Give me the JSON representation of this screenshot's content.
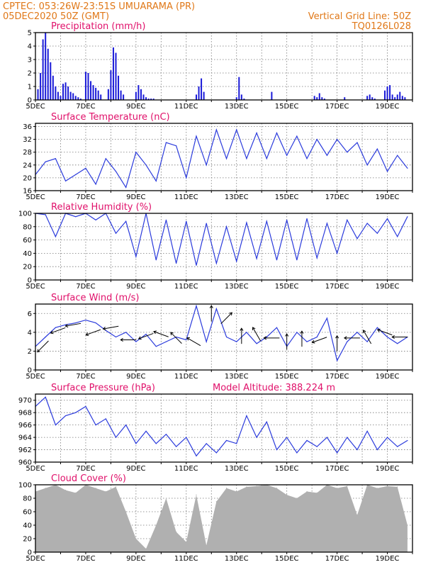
{
  "header": {
    "line1": "CPTEC:   053:26W-23:51S   UMUARAMA (PR)",
    "line2": "05DEC2020 50Z (GMT)",
    "right1": "Vertical Grid Line: 50Z",
    "right2": "TQ0126L028"
  },
  "colors": {
    "line": "#2b3bdc",
    "bars": "#1a1ad8",
    "cloud": "#b0b0b0",
    "header": "#e07818",
    "title": "#e0106a"
  },
  "x_tick_labels": [
    "5DEC",
    "7DEC",
    "9DEC",
    "11DEC",
    "13DEC",
    "15DEC",
    "17DEC",
    "19DEC"
  ],
  "chart_data": [
    {
      "id": "precip",
      "type": "bar",
      "title": "Precipitation (mm/h)",
      "ylim": [
        0,
        5
      ],
      "yticks": [
        0,
        1,
        2,
        3,
        4,
        5
      ],
      "x": [
        0.1,
        0.2,
        0.3,
        0.4,
        0.5,
        0.6,
        0.7,
        0.8,
        0.9,
        1.0,
        1.1,
        1.2,
        1.3,
        1.4,
        1.5,
        1.6,
        1.7,
        1.8,
        2.0,
        2.1,
        2.2,
        2.3,
        2.4,
        2.5,
        2.6,
        2.9,
        3.0,
        3.1,
        3.2,
        3.3,
        3.4,
        3.5,
        4.0,
        4.1,
        4.2,
        4.3,
        4.4,
        4.5,
        4.6,
        4.7,
        6.4,
        6.5,
        6.6,
        6.7,
        8.0,
        8.1,
        8.2,
        8.3,
        9.4,
        11.1,
        11.2,
        11.3,
        11.4,
        11.5,
        12.3,
        13.2,
        13.3,
        13.4,
        13.5,
        13.9,
        14.0,
        14.1,
        14.2,
        14.3,
        14.4,
        14.5,
        14.6,
        14.7
      ],
      "y": [
        0.8,
        2.0,
        4.5,
        5.0,
        3.8,
        2.8,
        1.8,
        1.0,
        0.6,
        0.3,
        1.2,
        1.3,
        1.0,
        0.6,
        0.5,
        0.3,
        0.2,
        0.1,
        2.1,
        2.0,
        1.4,
        1.1,
        0.9,
        0.7,
        0.4,
        0.8,
        2.2,
        3.9,
        3.5,
        1.8,
        0.7,
        0.4,
        0.6,
        1.1,
        0.8,
        0.4,
        0.2,
        0.1,
        0.1,
        0.1,
        0.4,
        1.0,
        1.6,
        0.6,
        0.2,
        1.7,
        0.4,
        0.1,
        0.6,
        0.3,
        0.2,
        0.5,
        0.2,
        0.1,
        0.2,
        0.3,
        0.4,
        0.2,
        0.1,
        0.7,
        1.0,
        1.1,
        0.4,
        0.2,
        0.4,
        0.6,
        0.3,
        0.2
      ]
    },
    {
      "id": "temp",
      "type": "line",
      "title": "Surface Temperature (nC)",
      "ylim": [
        16,
        37
      ],
      "yticks": [
        16,
        20,
        24,
        28,
        32,
        36
      ],
      "x": [
        0,
        0.4,
        0.8,
        1.2,
        1.6,
        2.0,
        2.4,
        2.8,
        3.2,
        3.6,
        4.0,
        4.4,
        4.8,
        5.2,
        5.6,
        6.0,
        6.4,
        6.8,
        7.2,
        7.6,
        8.0,
        8.4,
        8.8,
        9.2,
        9.6,
        10.0,
        10.4,
        10.8,
        11.2,
        11.6,
        12.0,
        12.4,
        12.8,
        13.2,
        13.6,
        14.0,
        14.4,
        14.8
      ],
      "y": [
        21,
        25,
        26,
        19,
        21,
        23,
        18,
        26,
        22,
        17,
        28,
        24,
        19,
        31,
        30,
        20,
        33,
        24,
        35,
        26,
        35,
        26,
        34,
        26,
        34,
        27,
        33,
        26,
        32,
        27,
        32,
        28,
        31,
        24,
        29,
        22,
        27,
        23
      ]
    },
    {
      "id": "rh",
      "type": "line",
      "title": "Relative Humidity (%)",
      "ylim": [
        0,
        100
      ],
      "yticks": [
        0,
        20,
        40,
        60,
        80,
        100
      ],
      "x": [
        0,
        0.4,
        0.8,
        1.2,
        1.6,
        2.0,
        2.4,
        2.8,
        3.2,
        3.6,
        4.0,
        4.4,
        4.8,
        5.2,
        5.6,
        6.0,
        6.4,
        6.8,
        7.2,
        7.6,
        8.0,
        8.4,
        8.8,
        9.2,
        9.6,
        10.0,
        10.4,
        10.8,
        11.2,
        11.6,
        12.0,
        12.4,
        12.8,
        13.2,
        13.6,
        14.0,
        14.4,
        14.8
      ],
      "y": [
        100,
        98,
        65,
        100,
        95,
        100,
        90,
        100,
        70,
        88,
        35,
        100,
        30,
        90,
        25,
        88,
        22,
        85,
        25,
        80,
        28,
        86,
        32,
        88,
        30,
        90,
        30,
        92,
        33,
        85,
        40,
        90,
        62,
        85,
        70,
        92,
        65,
        95
      ]
    },
    {
      "id": "wind",
      "type": "line",
      "title": "Surface Wind (m/s)",
      "ylim": [
        0,
        7
      ],
      "yticks": [
        0,
        2,
        4,
        6
      ],
      "x": [
        0,
        0.4,
        0.8,
        1.2,
        1.6,
        2.0,
        2.4,
        2.8,
        3.2,
        3.6,
        4.0,
        4.4,
        4.8,
        5.2,
        5.6,
        6.0,
        6.4,
        6.8,
        7.2,
        7.6,
        8.0,
        8.4,
        8.8,
        9.2,
        9.6,
        10.0,
        10.4,
        10.8,
        11.2,
        11.6,
        12.0,
        12.4,
        12.8,
        13.2,
        13.6,
        14.0,
        14.4,
        14.8
      ],
      "y": [
        2.5,
        3.5,
        4.5,
        4.8,
        5.0,
        5.3,
        5.0,
        4.2,
        3.5,
        4.0,
        3.0,
        3.8,
        2.5,
        3.0,
        3.5,
        3.2,
        6.8,
        3.0,
        6.5,
        3.5,
        3.0,
        4.0,
        2.8,
        3.5,
        4.5,
        2.5,
        4.0,
        3.0,
        3.5,
        5.5,
        1.0,
        3.0,
        4.0,
        3.0,
        4.5,
        3.5,
        2.8,
        3.5
      ],
      "arrows": {
        "x": [
          0.3,
          0.9,
          1.5,
          2.3,
          3.0,
          3.7,
          4.4,
          5.0,
          5.6,
          6.3,
          7.0,
          7.6,
          8.2,
          8.8,
          9.4,
          10.0,
          10.6,
          11.3,
          12.0,
          12.6,
          13.2,
          13.9,
          14.5
        ],
        "speed": [
          2.5,
          4.2,
          4.8,
          4.0,
          4.5,
          3.2,
          3.6,
          3.8,
          3.4,
          3.0,
          6.0,
          5.5,
          3.6,
          3.8,
          3.4,
          3.0,
          3.3,
          3.2,
          2.8,
          3.4,
          3.5,
          4.0,
          3.5
        ],
        "dir_deg": [
          225,
          200,
          190,
          200,
          190,
          180,
          200,
          160,
          135,
          150,
          90,
          45,
          90,
          120,
          180,
          90,
          90,
          200,
          90,
          180,
          120,
          160,
          180
        ]
      }
    },
    {
      "id": "pressure",
      "type": "line",
      "title": "Surface Pressure (hPa)",
      "subtitle": "Model Altitude: 388.224 m",
      "ylim": [
        960,
        971
      ],
      "yticks": [
        960,
        962,
        964,
        966,
        968,
        970
      ],
      "x": [
        0,
        0.4,
        0.8,
        1.2,
        1.6,
        2.0,
        2.4,
        2.8,
        3.2,
        3.6,
        4.0,
        4.4,
        4.8,
        5.2,
        5.6,
        6.0,
        6.4,
        6.8,
        7.2,
        7.6,
        8.0,
        8.4,
        8.8,
        9.2,
        9.6,
        10.0,
        10.4,
        10.8,
        11.2,
        11.6,
        12.0,
        12.4,
        12.8,
        13.2,
        13.6,
        14.0,
        14.4,
        14.8
      ],
      "y": [
        969,
        970.5,
        966,
        967.5,
        968,
        969,
        966,
        967,
        964,
        966,
        963,
        965,
        963,
        964.5,
        962.5,
        964,
        961,
        963,
        961.5,
        963.5,
        963,
        967.5,
        964,
        966.5,
        962,
        964,
        961.5,
        963.5,
        962.5,
        964,
        961.5,
        964,
        962,
        965,
        962,
        964,
        962.5,
        963.5
      ]
    },
    {
      "id": "cloud",
      "type": "area",
      "title": "Cloud Cover (%)",
      "ylim": [
        0,
        100
      ],
      "yticks": [
        0,
        20,
        40,
        60,
        80,
        100
      ],
      "x": [
        0,
        0.4,
        0.8,
        1.2,
        1.6,
        2.0,
        2.4,
        2.8,
        3.2,
        3.6,
        4.0,
        4.4,
        4.8,
        5.2,
        5.6,
        6.0,
        6.4,
        6.8,
        7.2,
        7.6,
        8.0,
        8.4,
        8.8,
        9.2,
        9.6,
        10.0,
        10.4,
        10.8,
        11.2,
        11.6,
        12.0,
        12.4,
        12.8,
        13.2,
        13.6,
        14.0,
        14.4,
        14.8
      ],
      "y": [
        90,
        95,
        100,
        92,
        88,
        100,
        95,
        90,
        97,
        60,
        20,
        5,
        40,
        80,
        30,
        15,
        85,
        10,
        75,
        95,
        90,
        97,
        98,
        100,
        95,
        85,
        80,
        90,
        88,
        100,
        95,
        98,
        55,
        100,
        95,
        98,
        97,
        40
      ]
    }
  ]
}
